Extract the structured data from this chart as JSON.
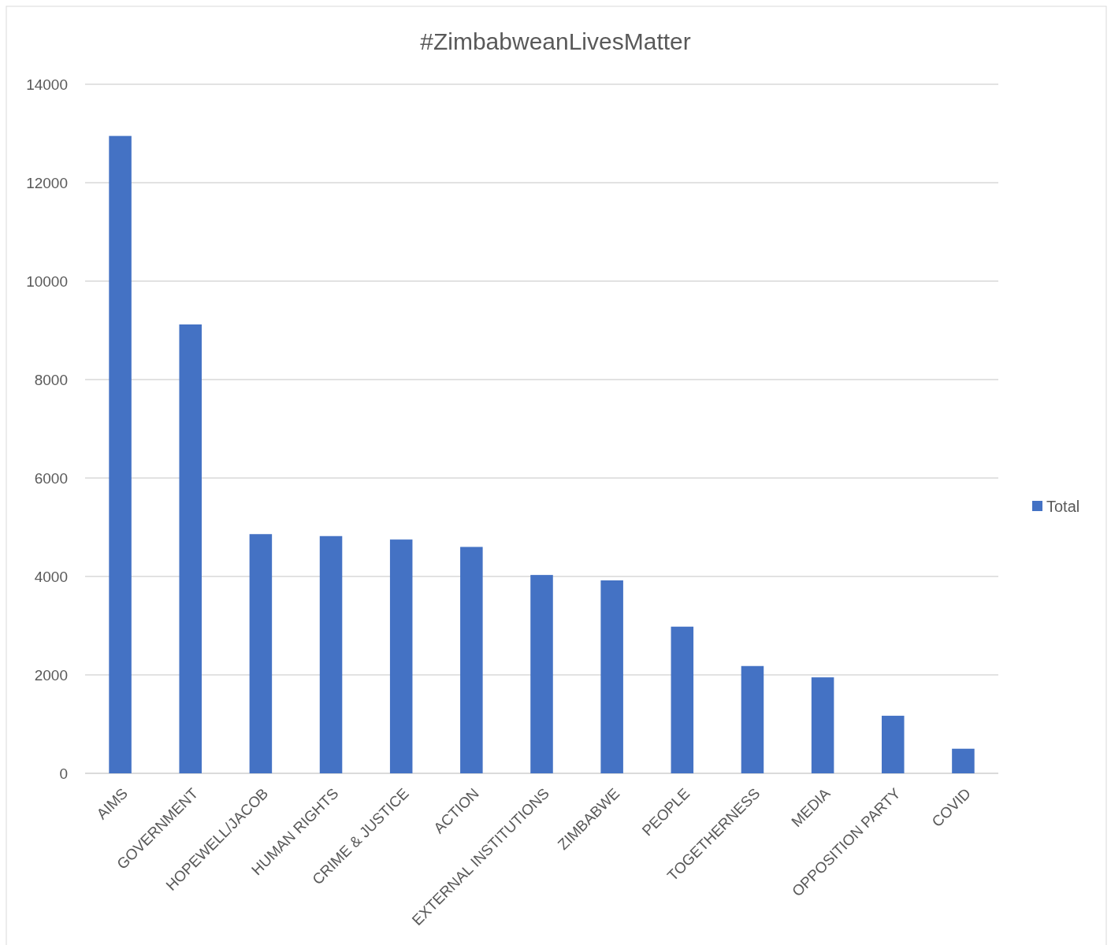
{
  "chart_data": {
    "type": "bar",
    "title": "#ZimbabweanLivesMatter",
    "categories": [
      "AIMS",
      "GOVERNMENT",
      "HOPEWELL/JACOB",
      "HUMAN RIGHTS",
      "CRIME & JUSTICE",
      "ACTION",
      "EXTERNAL INSTITUTIONS",
      "ZIMBABWE",
      "PEOPLE",
      "TOGETHERNESS",
      "MEDIA",
      "OPPOSITION PARTY",
      "COVID"
    ],
    "series": [
      {
        "name": "Total",
        "color": "#4472c4",
        "values": [
          12950,
          9120,
          4860,
          4820,
          4750,
          4600,
          4030,
          3920,
          2980,
          2180,
          1950,
          1170,
          500
        ]
      }
    ],
    "ylim": [
      0,
      14000
    ],
    "yticks": [
      0,
      2000,
      4000,
      6000,
      8000,
      10000,
      12000,
      14000
    ],
    "grid": "y",
    "legend": "right"
  }
}
